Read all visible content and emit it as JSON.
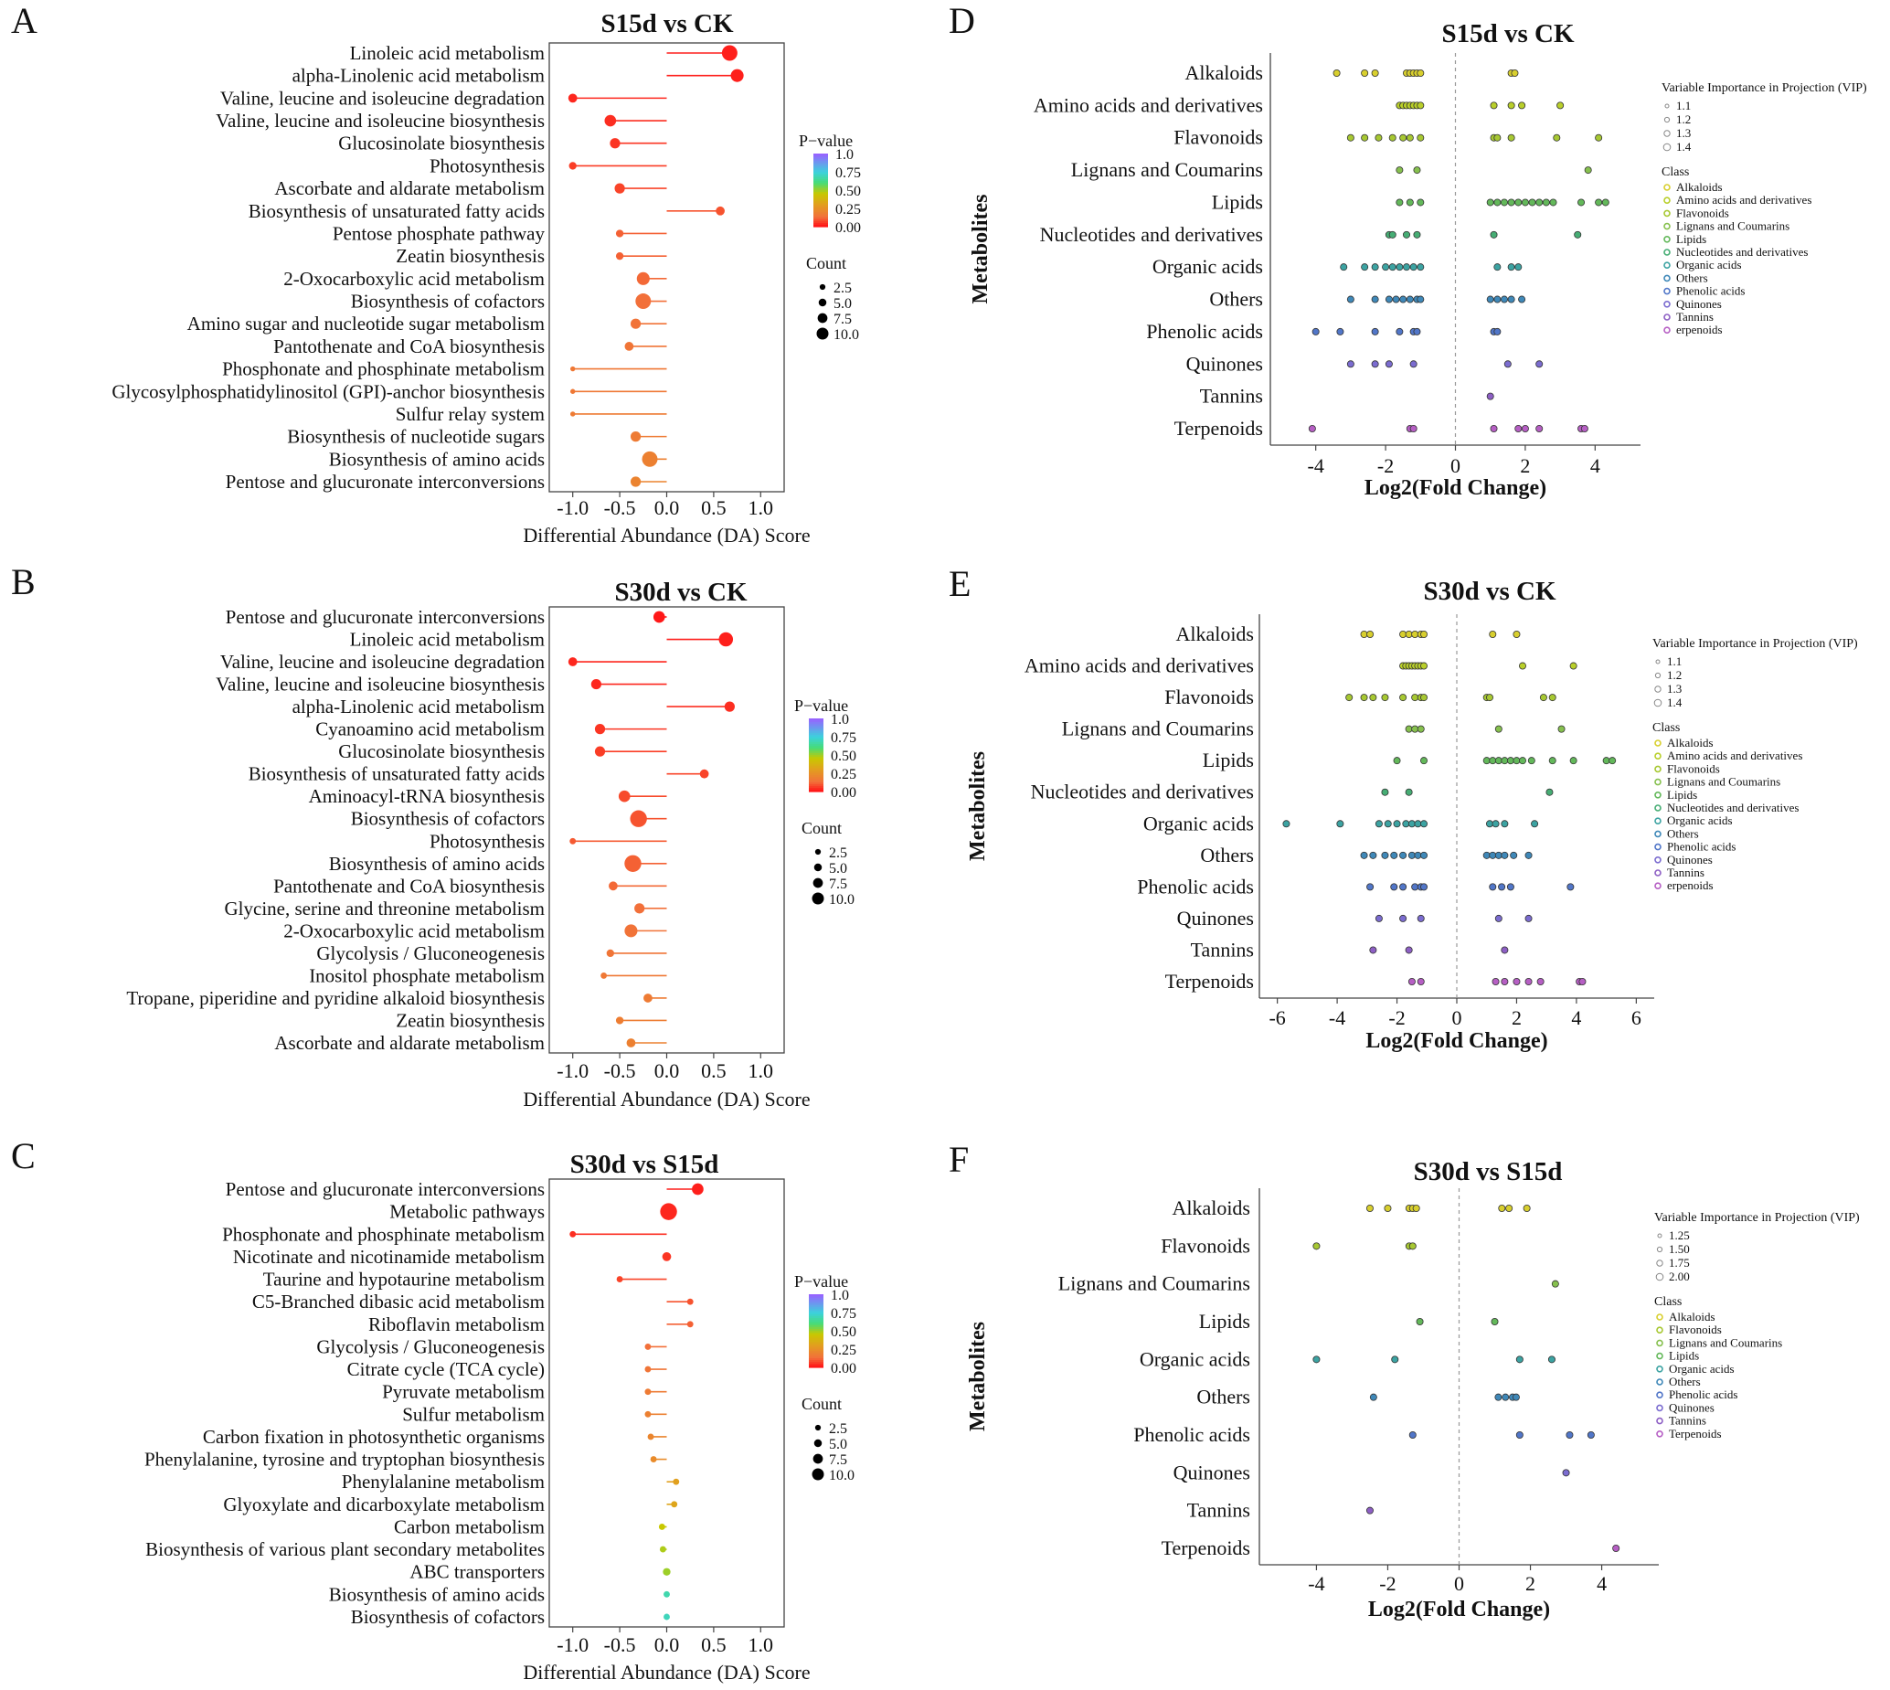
{
  "colors": {
    "red": "#e5231a",
    "orange": "#f0703a",
    "gold": "#c9b400",
    "cyan": "#3fd0d8",
    "highlight": "#e3231b"
  },
  "chart_data": [
    {
      "panel": "A",
      "type": "lollipop",
      "title": "S15d vs CK",
      "xlabel": "Differential Abundance (DA) Score",
      "xlim": [
        -1.25,
        1.25
      ],
      "xticks": [
        "-1.0",
        "-0.5",
        "0.0",
        "0.5",
        "1.0"
      ],
      "pvalue_legend": {
        "title": "P−value",
        "ticks": [
          "1.0",
          "0.75",
          "0.50",
          "0.25",
          "0.00"
        ]
      },
      "count_legend": {
        "title": "Count",
        "ticks": [
          "2.5",
          "5.0",
          "7.5",
          "10.0"
        ]
      },
      "points": [
        {
          "label": "Linoleic acid metabolism",
          "da": 0.67,
          "count": 9,
          "p": 0.01
        },
        {
          "label": "alpha-Linolenic acid metabolism",
          "da": 0.75,
          "count": 7,
          "p": 0.01
        },
        {
          "label": "Valine, leucine and isoleucine degradation",
          "da": -1.0,
          "count": 4,
          "p": 0.02
        },
        {
          "label": "Valine, leucine and isoleucine biosynthesis",
          "da": -0.6,
          "count": 6,
          "p": 0.03
        },
        {
          "label": "Glucosinolate biosynthesis",
          "da": -0.55,
          "count": 5,
          "p": 0.04
        },
        {
          "label": "Photosynthesis",
          "da": -1.0,
          "count": 3,
          "p": 0.05
        },
        {
          "label": "Ascorbate and aldarate metabolism",
          "da": -0.5,
          "count": 5,
          "p": 0.06
        },
        {
          "label": "Biosynthesis of unsaturated fatty acids",
          "da": 0.57,
          "count": 4,
          "p": 0.08
        },
        {
          "label": "Pentose phosphate pathway",
          "da": -0.5,
          "count": 3,
          "p": 0.1
        },
        {
          "label": "Zeatin biosynthesis",
          "da": -0.5,
          "count": 3,
          "p": 0.1
        },
        {
          "label": "2-Oxocarboxylic acid metabolism",
          "da": -0.25,
          "count": 7,
          "p": 0.11
        },
        {
          "label": "Biosynthesis of cofactors",
          "da": -0.25,
          "count": 9,
          "p": 0.12
        },
        {
          "label": "Amino sugar and nucleotide sugar metabolism",
          "da": -0.33,
          "count": 5,
          "p": 0.13
        },
        {
          "label": "Pantothenate and CoA biosynthesis",
          "da": -0.4,
          "count": 4,
          "p": 0.14
        },
        {
          "label": "Phosphonate and phosphinate metabolism",
          "da": -1.0,
          "count": 1,
          "p": 0.15
        },
        {
          "label": "Glycosylphosphatidylinositol (GPI)-anchor biosynthesis",
          "da": -1.0,
          "count": 1,
          "p": 0.15
        },
        {
          "label": "Sulfur relay system",
          "da": -1.0,
          "count": 1,
          "p": 0.16
        },
        {
          "label": "Biosynthesis of nucleotide sugars",
          "da": -0.33,
          "count": 5,
          "p": 0.16
        },
        {
          "label": "Biosynthesis of amino acids",
          "da": -0.18,
          "count": 9,
          "p": 0.18
        },
        {
          "label": "Pentose and glucuronate interconversions",
          "da": -0.33,
          "count": 5,
          "p": 0.19
        }
      ]
    },
    {
      "panel": "B",
      "type": "lollipop",
      "title": "S30d vs CK",
      "xlabel": "Differential Abundance (DA) Score",
      "xlim": [
        -1.25,
        1.25
      ],
      "xticks": [
        "-1.0",
        "-0.5",
        "0.0",
        "0.5",
        "1.0"
      ],
      "pvalue_legend": {
        "title": "P−value",
        "ticks": [
          "1.0",
          "0.75",
          "0.50",
          "0.25",
          "0.00"
        ]
      },
      "count_legend": {
        "title": "Count",
        "ticks": [
          "2.5",
          "5.0",
          "7.5",
          "10.0"
        ]
      },
      "points": [
        {
          "label": "Pentose and glucuronate interconversions",
          "da": -0.08,
          "count": 6,
          "p": 0.0
        },
        {
          "label": "Linoleic acid metabolism",
          "da": 0.63,
          "count": 8,
          "p": 0.01
        },
        {
          "label": "Valine, leucine and isoleucine degradation",
          "da": -1.0,
          "count": 4,
          "p": 0.02
        },
        {
          "label": "Valine, leucine and isoleucine biosynthesis",
          "da": -0.75,
          "count": 5,
          "p": 0.02
        },
        {
          "label": "alpha-Linolenic acid metabolism",
          "da": 0.67,
          "count": 5,
          "p": 0.03
        },
        {
          "label": "Cyanoamino acid metabolism",
          "da": -0.71,
          "count": 5,
          "p": 0.04
        },
        {
          "label": "Glucosinolate biosynthesis",
          "da": -0.71,
          "count": 5,
          "p": 0.05
        },
        {
          "label": "Biosynthesis of unsaturated fatty acids",
          "da": 0.4,
          "count": 4,
          "p": 0.06
        },
        {
          "label": "Aminoacyl-tRNA biosynthesis",
          "da": -0.45,
          "count": 6,
          "p": 0.07
        },
        {
          "label": "Biosynthesis of cofactors",
          "da": -0.3,
          "count": 10,
          "p": 0.08
        },
        {
          "label": "Photosynthesis",
          "da": -1.0,
          "count": 2,
          "p": 0.09
        },
        {
          "label": "Biosynthesis of amino acids",
          "da": -0.36,
          "count": 10,
          "p": 0.1
        },
        {
          "label": "Pantothenate and CoA biosynthesis",
          "da": -0.57,
          "count": 4,
          "p": 0.11
        },
        {
          "label": "Glycine, serine and threonine metabolism",
          "da": -0.29,
          "count": 5,
          "p": 0.12
        },
        {
          "label": "2-Oxocarboxylic acid metabolism",
          "da": -0.38,
          "count": 7,
          "p": 0.13
        },
        {
          "label": "Glycolysis / Gluconeogenesis",
          "da": -0.6,
          "count": 3,
          "p": 0.14
        },
        {
          "label": "Inositol phosphate metabolism",
          "da": -0.67,
          "count": 2,
          "p": 0.15
        },
        {
          "label": "Tropane, piperidine and pyridine alkaloid biosynthesis",
          "da": -0.2,
          "count": 4,
          "p": 0.16
        },
        {
          "label": "Zeatin biosynthesis",
          "da": -0.5,
          "count": 3,
          "p": 0.17
        },
        {
          "label": "Ascorbate and aldarate metabolism",
          "da": -0.38,
          "count": 4,
          "p": 0.18
        }
      ]
    },
    {
      "panel": "C",
      "type": "lollipop",
      "title": "S30d vs S15d",
      "xlabel": "Differential Abundance (DA) Score",
      "xlim": [
        -1.25,
        1.25
      ],
      "xticks": [
        "-1.0",
        "-0.5",
        "0.0",
        "0.5",
        "1.0"
      ],
      "pvalue_legend": {
        "title": "P−value",
        "ticks": [
          "1.0",
          "0.75",
          "0.50",
          "0.25",
          "0.00"
        ]
      },
      "count_legend": {
        "title": "Count",
        "ticks": [
          "2.5",
          "5.0",
          "7.5",
          "10.0"
        ]
      },
      "points": [
        {
          "label": "Pentose and glucuronate interconversions",
          "da": 0.33,
          "count": 6,
          "p": 0.01
        },
        {
          "label": "Metabolic pathways",
          "da": 0.02,
          "count": 10,
          "p": 0.02
        },
        {
          "label": "Phosphonate and phosphinate metabolism",
          "da": -1.0,
          "count": 2,
          "p": 0.03
        },
        {
          "label": "Nicotinate and nicotinamide metabolism",
          "da": 0.0,
          "count": 4,
          "p": 0.04
        },
        {
          "label": "Taurine and hypotaurine metabolism",
          "da": -0.5,
          "count": 2,
          "p": 0.06
        },
        {
          "label": "C5-Branched dibasic acid metabolism",
          "da": 0.25,
          "count": 2,
          "p": 0.08
        },
        {
          "label": "Riboflavin metabolism",
          "da": 0.25,
          "count": 2,
          "p": 0.1
        },
        {
          "label": "Glycolysis / Gluconeogenesis",
          "da": -0.2,
          "count": 2,
          "p": 0.12
        },
        {
          "label": "Citrate cycle (TCA cycle)",
          "da": -0.2,
          "count": 2,
          "p": 0.14
        },
        {
          "label": "Pyruvate metabolism",
          "da": -0.2,
          "count": 2,
          "p": 0.16
        },
        {
          "label": "Sulfur metabolism",
          "da": -0.2,
          "count": 2,
          "p": 0.18
        },
        {
          "label": "Carbon fixation in photosynthetic organisms",
          "da": -0.17,
          "count": 2,
          "p": 0.2
        },
        {
          "label": "Phenylalanine, tyrosine and tryptophan biosynthesis",
          "da": -0.14,
          "count": 2,
          "p": 0.22
        },
        {
          "label": "Phenylalanine metabolism",
          "da": 0.1,
          "count": 2,
          "p": 0.3
        },
        {
          "label": "Glyoxylate and dicarboxylate metabolism",
          "da": 0.08,
          "count": 2,
          "p": 0.32
        },
        {
          "label": "Carbon metabolism",
          "da": -0.05,
          "count": 2,
          "p": 0.45
        },
        {
          "label": "Biosynthesis of various plant secondary metabolites",
          "da": -0.04,
          "count": 2,
          "p": 0.48
        },
        {
          "label": "ABC transporters",
          "da": 0.0,
          "count": 3,
          "p": 0.5
        },
        {
          "label": "Biosynthesis of amino acids",
          "da": 0.0,
          "count": 2,
          "p": 0.68
        },
        {
          "label": "Biosynthesis of cofactors",
          "da": 0.0,
          "count": 2,
          "p": 0.7
        }
      ]
    },
    {
      "panel": "D",
      "type": "scatter",
      "title": "S15d vs CK",
      "xlabel": "Log2(Fold Change)",
      "ylabel": "Metabolites",
      "xlim": [
        -5.3,
        5.3
      ],
      "xticks": [
        -4,
        -2,
        0,
        2,
        4
      ],
      "highlight": "Flavonoids",
      "categories": [
        "Alkaloids",
        "Amino acids and derivatives",
        "Flavonoids",
        "Lignans and Coumarins",
        "Lipids",
        "Nucleotides and derivatives",
        "Organic acids",
        "Others",
        "Phenolic acids",
        "Quinones",
        "Tannins",
        "Terpenoids"
      ],
      "vip_legend": {
        "title": "Variable Importance in Projection (VIP)",
        "ticks": [
          "1.1",
          "1.2",
          "1.3",
          "1.4"
        ]
      },
      "class_legend": {
        "title": "Class",
        "items": [
          "Alkaloids",
          "Amino acids and derivatives",
          "Flavonoids",
          "Lignans and Coumarins",
          "Lipids",
          "Nucleotides and derivatives",
          "Organic acids",
          "Others",
          "Phenolic acids",
          "Quinones",
          "Tannins",
          "erpenoids"
        ]
      },
      "points": [
        [
          -3.4,
          -2.6,
          -2.3,
          -1.4,
          -1.3,
          -1.2,
          -1.1,
          -1.0,
          1.6,
          1.7
        ],
        [
          -1.6,
          -1.5,
          -1.4,
          -1.3,
          -1.2,
          -1.1,
          -1.0,
          1.1,
          1.6,
          1.9,
          3.0
        ],
        [
          -3.0,
          -2.6,
          -2.2,
          -1.8,
          -1.5,
          -1.3,
          -1.0,
          1.1,
          1.2,
          1.6,
          2.9,
          4.1
        ],
        [
          -1.6,
          -1.1,
          3.8
        ],
        [
          -1.6,
          -1.3,
          -1.0,
          1.0,
          1.2,
          1.4,
          1.6,
          1.8,
          2.0,
          2.2,
          2.4,
          2.6,
          2.8,
          3.6,
          4.1,
          4.3
        ],
        [
          -1.9,
          -1.8,
          -1.4,
          -1.1,
          1.1,
          3.5
        ],
        [
          -3.2,
          -2.6,
          -2.3,
          -2.0,
          -1.8,
          -1.6,
          -1.4,
          -1.2,
          -1.0,
          1.2,
          1.6,
          1.8
        ],
        [
          -3.0,
          -2.3,
          -1.9,
          -1.7,
          -1.5,
          -1.3,
          -1.1,
          -1.0,
          1.0,
          1.2,
          1.4,
          1.6,
          1.9
        ],
        [
          -4.0,
          -3.3,
          -2.3,
          -1.6,
          -1.2,
          -1.1,
          1.1,
          1.2
        ],
        [
          -3.0,
          -2.3,
          -1.9,
          -1.2,
          1.5,
          2.4
        ],
        [
          1.0
        ],
        [
          -4.1,
          -1.3,
          -1.2,
          1.1,
          1.8,
          2.0,
          2.4,
          3.6,
          3.7
        ]
      ]
    },
    {
      "panel": "E",
      "type": "scatter",
      "title": "S30d vs CK",
      "xlabel": "Log2(Fold Change)",
      "ylabel": "Metabolites",
      "xlim": [
        -6.6,
        6.6
      ],
      "xticks": [
        -6,
        -4,
        -2,
        0,
        2,
        4,
        6
      ],
      "highlight": "Flavonoids",
      "categories": [
        "Alkaloids",
        "Amino acids and derivatives",
        "Flavonoids",
        "Lignans and Coumarins",
        "Lipids",
        "Nucleotides and derivatives",
        "Organic acids",
        "Others",
        "Phenolic acids",
        "Quinones",
        "Tannins",
        "Terpenoids"
      ],
      "vip_legend": {
        "title": "Variable Importance in Projection (VIP)",
        "ticks": [
          "1.1",
          "1.2",
          "1.3",
          "1.4"
        ]
      },
      "class_legend": {
        "title": "Class",
        "items": [
          "Alkaloids",
          "Amino acids and derivatives",
          "Flavonoids",
          "Lignans and Coumarins",
          "Lipids",
          "Nucleotides and derivatives",
          "Organic acids",
          "Others",
          "Phenolic acids",
          "Quinones",
          "Tannins",
          "erpenoids"
        ]
      },
      "points": [
        [
          -3.1,
          -2.9,
          -1.8,
          -1.6,
          -1.4,
          -1.2,
          -1.1,
          1.2,
          2.0
        ],
        [
          -1.8,
          -1.7,
          -1.6,
          -1.5,
          -1.4,
          -1.3,
          -1.2,
          -1.1,
          2.2,
          3.9
        ],
        [
          -3.6,
          -3.1,
          -2.8,
          -2.4,
          -1.8,
          -1.4,
          -1.2,
          -1.1,
          1.0,
          1.1,
          2.9,
          3.2
        ],
        [
          -1.6,
          -1.4,
          -1.2,
          1.4,
          3.5
        ],
        [
          -2.0,
          -1.1,
          1.0,
          1.2,
          1.4,
          1.6,
          1.8,
          2.0,
          2.2,
          2.5,
          3.2,
          3.9,
          5.0,
          5.2
        ],
        [
          -2.4,
          -1.6,
          3.1
        ],
        [
          -5.7,
          -3.9,
          -2.6,
          -2.3,
          -2.0,
          -1.7,
          -1.5,
          -1.3,
          -1.1,
          1.1,
          1.3,
          1.6,
          2.6
        ],
        [
          -3.1,
          -2.8,
          -2.4,
          -2.1,
          -1.8,
          -1.5,
          -1.3,
          -1.1,
          1.0,
          1.2,
          1.4,
          1.6,
          1.9,
          2.4
        ],
        [
          -2.9,
          -2.1,
          -1.8,
          -1.4,
          -1.2,
          -1.1,
          1.2,
          1.5,
          1.8,
          3.8
        ],
        [
          -2.6,
          -1.8,
          -1.2,
          1.4,
          2.4
        ],
        [
          -2.8,
          -1.6,
          1.6
        ],
        [
          -1.5,
          -1.2,
          1.3,
          1.6,
          2.0,
          2.4,
          2.8,
          4.1,
          4.2
        ]
      ]
    },
    {
      "panel": "F",
      "type": "scatter",
      "title": "S30d vs S15d",
      "xlabel": "Log2(Fold Change)",
      "ylabel": "Metabolites",
      "xlim": [
        -5.6,
        5.6
      ],
      "xticks": [
        -4,
        -2,
        0,
        2,
        4
      ],
      "highlight": "Flavonoids",
      "categories": [
        "Alkaloids",
        "Flavonoids",
        "Lignans and Coumarins",
        "Lipids",
        "Organic acids",
        "Others",
        "Phenolic acids",
        "Quinones",
        "Tannins",
        "Terpenoids"
      ],
      "vip_legend": {
        "title": "Variable Importance in Projection (VIP)",
        "ticks": [
          "1.25",
          "1.50",
          "1.75",
          "2.00"
        ]
      },
      "class_legend": {
        "title": "Class",
        "items": [
          "Alkaloids",
          "Flavonoids",
          "Lignans and Coumarins",
          "Lipids",
          "Organic acids",
          "Others",
          "Phenolic acids",
          "Quinones",
          "Tannins",
          "Terpenoids"
        ]
      },
      "points": [
        [
          -2.5,
          -2.0,
          -1.4,
          -1.3,
          -1.2,
          1.2,
          1.4,
          1.9
        ],
        [
          -4.0,
          -1.4,
          -1.3
        ],
        [
          2.7
        ],
        [
          -1.1,
          1.0
        ],
        [
          -4.0,
          -1.8,
          1.7,
          2.6
        ],
        [
          -2.4,
          1.1,
          1.3,
          1.5,
          1.6
        ],
        [
          -1.3,
          1.7,
          3.1,
          3.7
        ],
        [
          3.0
        ],
        [
          -2.5
        ],
        [
          4.4
        ]
      ]
    }
  ],
  "panel_letters": [
    "A",
    "B",
    "C",
    "D",
    "E",
    "F"
  ]
}
